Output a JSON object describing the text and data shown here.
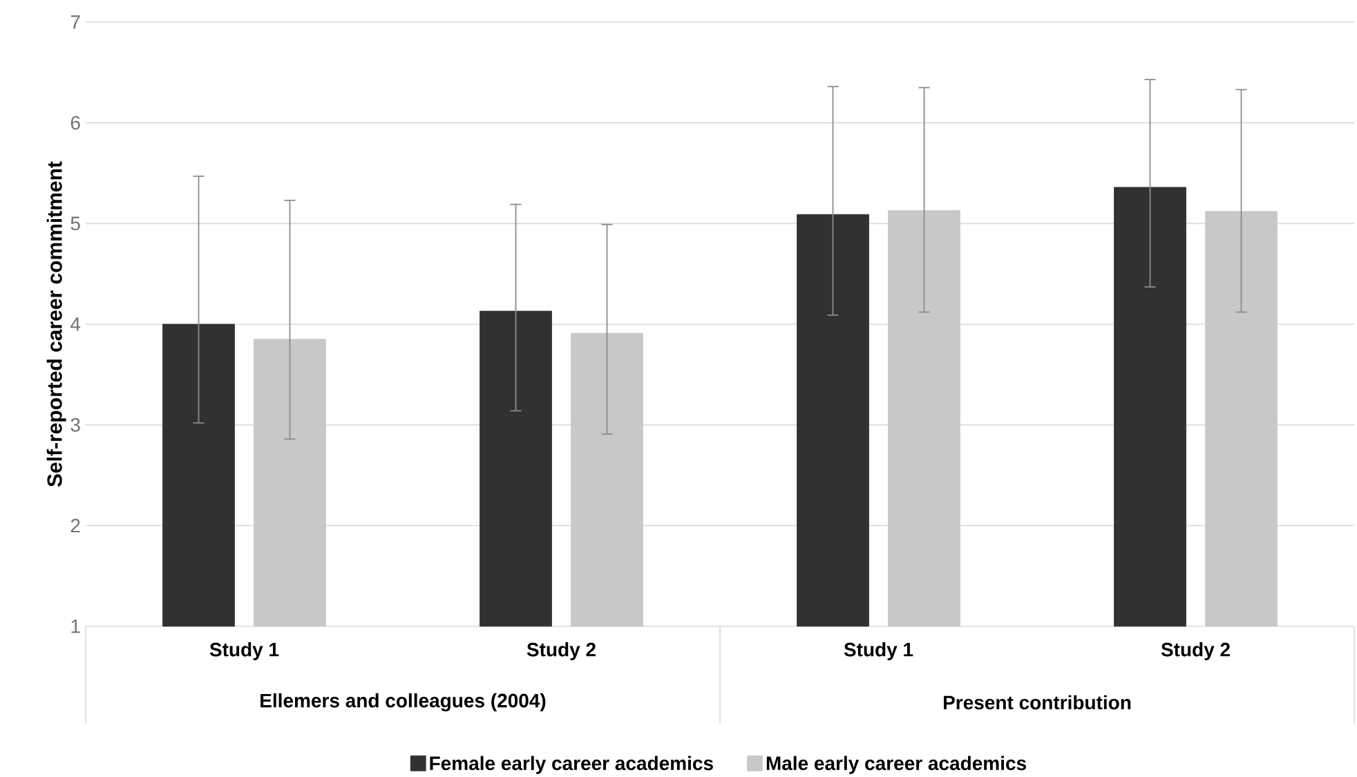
{
  "chart_data": {
    "type": "bar",
    "ylabel": "Self-reported career commitment",
    "categories": [
      "Study 1",
      "Study 2",
      "Study 1",
      "Study 2"
    ],
    "annotations": [
      "Ellemers and colleagues (2004)",
      "Present contribution"
    ],
    "series": [
      {
        "name": "Female early career academics",
        "color": "#323031",
        "values": [
          4.0,
          4.13,
          5.09,
          5.36
        ],
        "errors": [
          [
            3.02,
            5.47
          ],
          [
            3.14,
            5.19
          ],
          [
            4.09,
            6.36
          ],
          [
            4.37,
            6.43
          ]
        ]
      },
      {
        "name": "Male early career academics",
        "color": "#c7c8ca",
        "values": [
          3.85,
          3.91,
          5.13,
          5.12
        ],
        "errors": [
          [
            2.86,
            5.23
          ],
          [
            2.91,
            4.99
          ],
          [
            4.12,
            6.35
          ],
          [
            4.12,
            6.33
          ]
        ]
      }
    ],
    "ylim": [
      1,
      7
    ],
    "yticks": [
      1,
      2,
      3,
      4,
      5,
      6,
      7
    ],
    "grid": "y",
    "legend": "bottom"
  }
}
